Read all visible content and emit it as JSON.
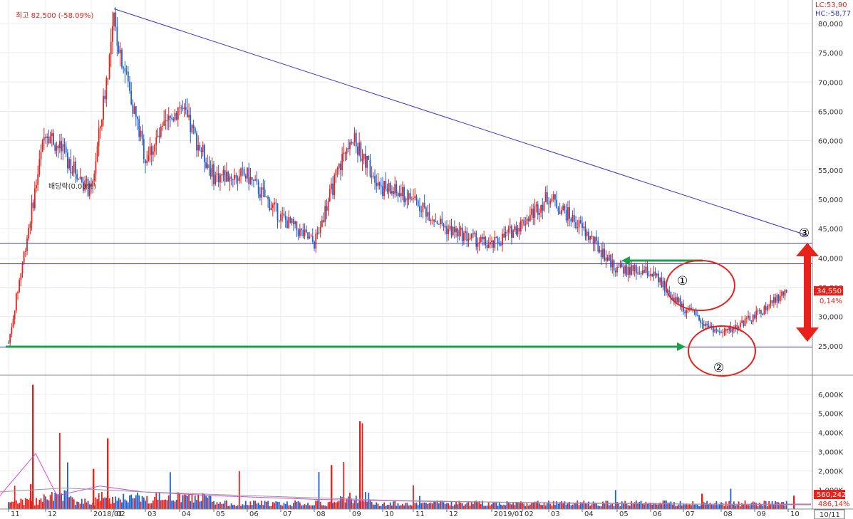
{
  "chart_data": {
    "type": "candlestick",
    "price_panel": {
      "y_ticks": [
        "80,000",
        "75,000",
        "70,000",
        "65,000",
        "60,000",
        "55,000",
        "50,000",
        "45,000",
        "40,000",
        "35,000",
        "30,000",
        "25,000"
      ],
      "ylim": [
        20000,
        84000
      ],
      "support_lines": [
        42500,
        39000,
        24800
      ],
      "trend_line": {
        "from_label": "02",
        "from_value": 82500,
        "to_label": "10",
        "to_value": 43800
      },
      "series": [
        {
          "x": "11",
          "close": 25500
        },
        {
          "x": "12",
          "close": 62000
        },
        {
          "x": "2018/01",
          "close": 51000
        },
        {
          "x": "02",
          "close": 80000
        },
        {
          "x": "03",
          "close": 57000
        },
        {
          "x": "04",
          "close": 66000
        },
        {
          "x": "05",
          "close": 54000
        },
        {
          "x": "06",
          "close": 54000
        },
        {
          "x": "07",
          "close": 47000
        },
        {
          "x": "08",
          "close": 42500
        },
        {
          "x": "09",
          "close": 61000
        },
        {
          "x": "10",
          "close": 52000
        },
        {
          "x": "11",
          "close": 50000
        },
        {
          "x": "12",
          "close": 45000
        },
        {
          "x": "2019/01",
          "close": 42000
        },
        {
          "x": "02",
          "close": 46000
        },
        {
          "x": "03",
          "close": 50500
        },
        {
          "x": "04",
          "close": 45000
        },
        {
          "x": "05",
          "close": 38000
        },
        {
          "x": "06",
          "close": 37500
        },
        {
          "x": "07",
          "close": 31500
        },
        {
          "x": "08",
          "close": 27000
        },
        {
          "x": "09",
          "close": 30000
        },
        {
          "x": "10",
          "close": 34550
        }
      ],
      "last_price": "34,550",
      "last_change": "0,14%",
      "high_label": "최고 82,500 (-58.09%)",
      "dividend_label": "배당락(0.00%)",
      "lc_label": "LC:53,90",
      "hc_label": "HC:-58,77",
      "markers": [
        "①",
        "②",
        "③"
      ]
    },
    "volume_panel": {
      "y_ticks": [
        "6,000K",
        "5,000K",
        "4,000K",
        "3,000K",
        "2,000K",
        "1,000K"
      ],
      "ylim": [
        0,
        7000
      ],
      "last_volume": "560,242",
      "last_volume_pct": "486,14%"
    },
    "x_ticks": [
      "11",
      "12",
      "2018/01",
      "02",
      "03",
      "04",
      "05",
      "06",
      "07",
      "08",
      "09",
      "10",
      "11",
      "12",
      "2019/01",
      "02",
      "03",
      "04",
      "05",
      "06",
      "07",
      "08",
      "09",
      "10"
    ],
    "date_box": "10/11",
    "colors": {
      "up": "#e8221b",
      "down": "#1f5fd0",
      "trend": "#3333dd",
      "hline": "#3a3ad0",
      "arrow_green": "#1aa04a",
      "annot_red": "#e8221b",
      "badge_bg": "#e8221b"
    }
  }
}
